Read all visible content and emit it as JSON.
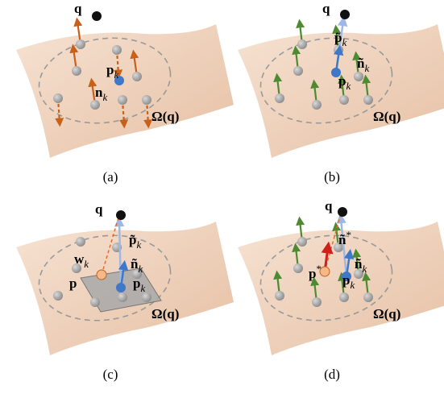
{
  "panels": [
    {
      "caption": "(a)",
      "labels": [
        {
          "text": "q"
        },
        {
          "text": "p",
          "sub": "k"
        },
        {
          "text": "n",
          "sub": "k"
        },
        {
          "text": "Ω(q)"
        }
      ]
    },
    {
      "caption": "(b)",
      "labels": [
        {
          "text": "q"
        },
        {
          "text": "p̃",
          "sub": "k"
        },
        {
          "text": "ñ",
          "sub": "k"
        },
        {
          "text": "p",
          "sub": "k"
        },
        {
          "text": "Ω(q)"
        }
      ]
    },
    {
      "caption": "(c)",
      "labels": [
        {
          "text": "q"
        },
        {
          "text": "p̃",
          "sub": "k"
        },
        {
          "text": "w",
          "sub": "k"
        },
        {
          "text": "ñ",
          "sub": "k"
        },
        {
          "text": "p"
        },
        {
          "text": "p",
          "sub": "k"
        },
        {
          "text": "Ω(q)"
        }
      ]
    },
    {
      "caption": "(d)",
      "labels": [
        {
          "text": "q"
        },
        {
          "text": "ñ",
          "sup": "*"
        },
        {
          "text": "ñ",
          "sub": "k"
        },
        {
          "text": "p",
          "sup": "*"
        },
        {
          "text": "p",
          "sub": "k"
        },
        {
          "text": "Ω(q)"
        }
      ]
    }
  ]
}
